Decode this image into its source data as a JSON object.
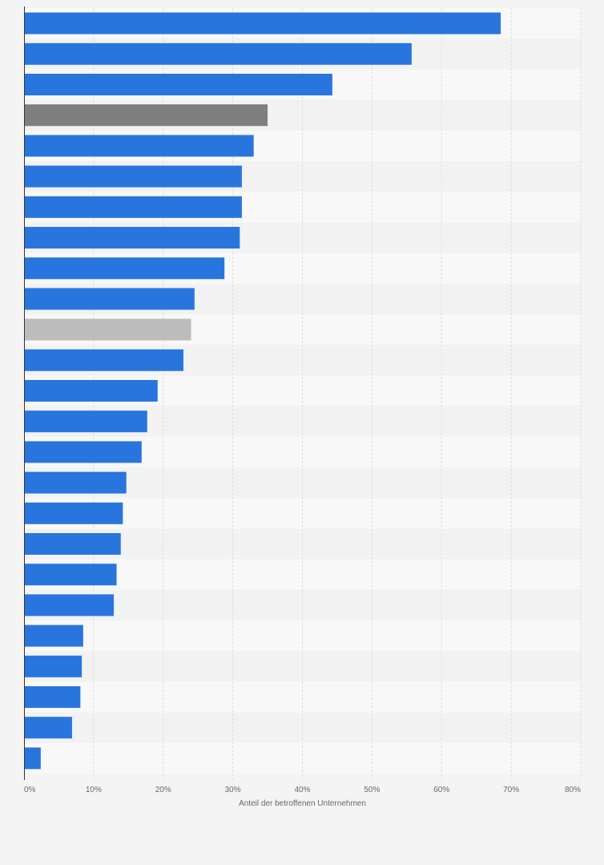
{
  "chart_data": {
    "type": "bar",
    "orientation": "horizontal",
    "xlabel": "Anteil der betroffenen Unternehmen",
    "xlim": [
      0,
      80
    ],
    "x_ticks": [
      "0%",
      "10%",
      "20%",
      "30%",
      "40%",
      "50%",
      "60%",
      "70%",
      "80%"
    ],
    "grid": true,
    "values": [
      68.5,
      55.7,
      44.3,
      35.0,
      33.0,
      31.3,
      31.3,
      31.0,
      28.8,
      24.5,
      24.0,
      22.9,
      19.2,
      17.7,
      16.9,
      14.7,
      14.2,
      13.9,
      13.3,
      12.9,
      8.5,
      8.3,
      8.1,
      6.9,
      2.4
    ],
    "bar_colors": [
      "#2876dd",
      "#2876dd",
      "#2876dd",
      "#7f7f7f",
      "#2876dd",
      "#2876dd",
      "#2876dd",
      "#2876dd",
      "#2876dd",
      "#2876dd",
      "#bcbcbc",
      "#2876dd",
      "#2876dd",
      "#2876dd",
      "#2876dd",
      "#2876dd",
      "#2876dd",
      "#2876dd",
      "#2876dd",
      "#2876dd",
      "#2876dd",
      "#2876dd",
      "#2876dd",
      "#2876dd",
      "#2876dd"
    ]
  },
  "colors": {
    "background": "#f4f4f4",
    "plot_band_light": "#f8f8f8",
    "plot_band_dark": "#f2f2f2",
    "gridline": "#dddddd",
    "axis_line": "#333333",
    "primary_bar": "#2876dd"
  }
}
